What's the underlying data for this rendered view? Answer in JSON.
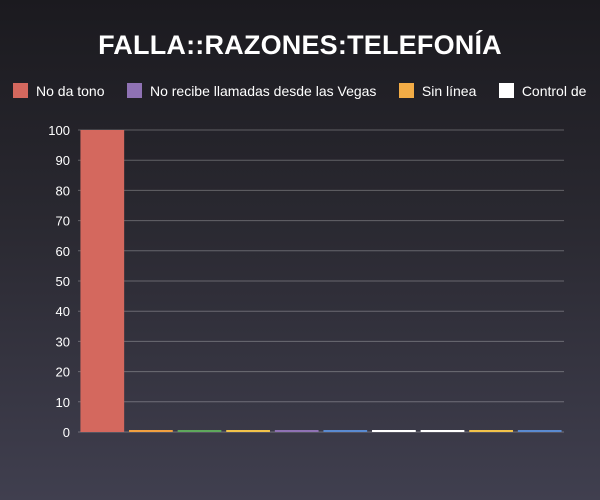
{
  "chart_data": {
    "type": "bar",
    "title": "FALLA::RAZONES:TELEFONÍA",
    "xlabel": "",
    "ylabel": "",
    "ylim": [
      0,
      100
    ],
    "yticks": [
      0,
      10,
      20,
      30,
      40,
      50,
      60,
      70,
      80,
      90,
      100
    ],
    "grid": true,
    "legend_position": "top",
    "legend": [
      {
        "label": "No da tono",
        "color": "#d4685e"
      },
      {
        "label": "No recibe llamadas desde las Vegas",
        "color": "#8f72b4"
      },
      {
        "label": "Sin línea",
        "color": "#f2ac46"
      },
      {
        "label": "Control de",
        "color": "#ffffff"
      }
    ],
    "bars": [
      {
        "value": 100,
        "color": "#d4685e"
      },
      {
        "value": 0,
        "color": "#f0a040"
      },
      {
        "value": 0,
        "color": "#5ea85c"
      },
      {
        "value": 0,
        "color": "#f2c34a"
      },
      {
        "value": 0,
        "color": "#8f72b4"
      },
      {
        "value": 0,
        "color": "#5a8ad0"
      },
      {
        "value": 0,
        "color": "#ffffff"
      },
      {
        "value": 0,
        "color": "#ffffff"
      },
      {
        "value": 0,
        "color": "#f2c34a"
      },
      {
        "value": 0,
        "color": "#5a8ad0"
      }
    ]
  }
}
